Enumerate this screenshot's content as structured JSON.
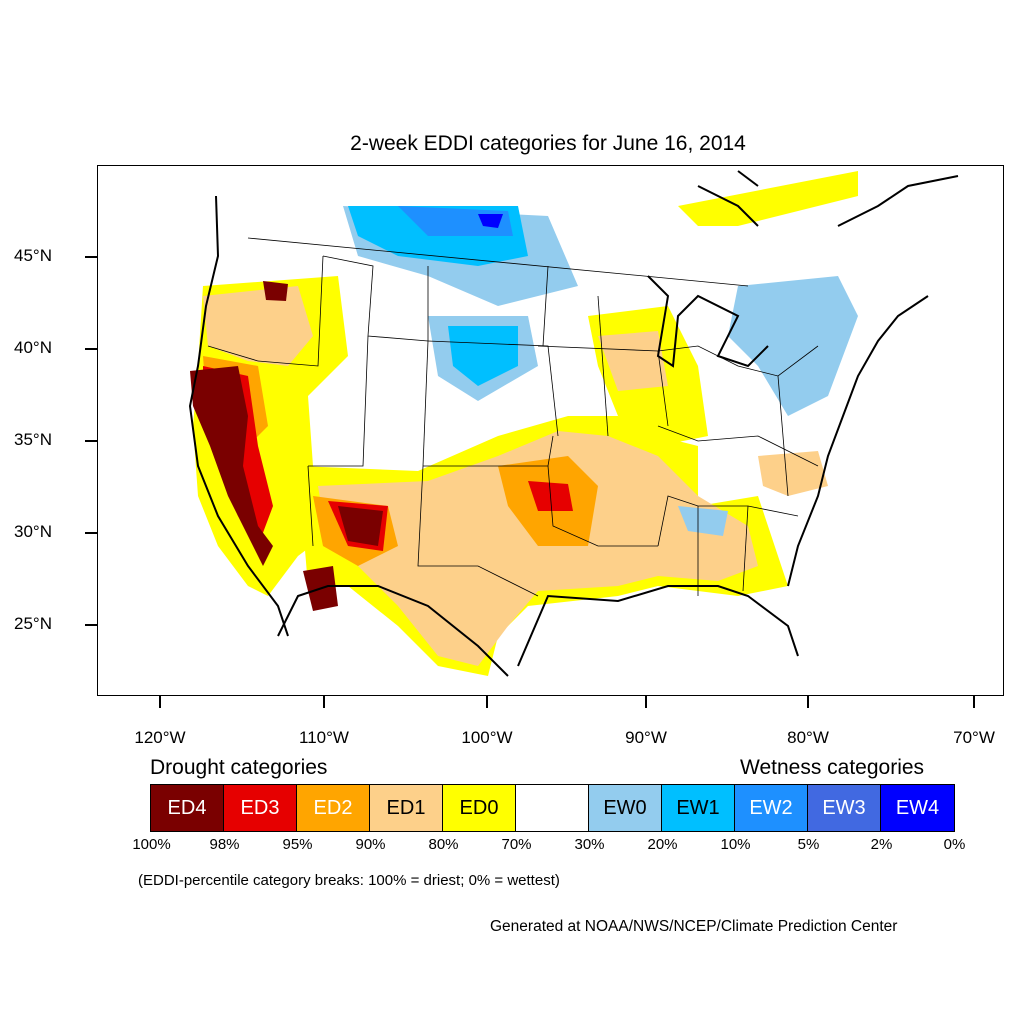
{
  "title": "2-week EDDI categories for June 16, 2014",
  "lat_labels": [
    "45°N",
    "40°N",
    "35°N",
    "30°N",
    "25°N"
  ],
  "lon_labels": [
    "120°W",
    "110°W",
    "100°W",
    "90°W",
    "80°W",
    "70°W"
  ],
  "legend": {
    "drought_title": "Drought categories",
    "wetness_title": "Wetness categories",
    "categories": [
      {
        "label": "ED4",
        "color": "#7a0000",
        "text_color": "#ffffff"
      },
      {
        "label": "ED3",
        "color": "#e60000",
        "text_color": "#ffffff"
      },
      {
        "label": "ED2",
        "color": "#ffa500",
        "text_color": "#ffffff"
      },
      {
        "label": "ED1",
        "color": "#fdd08a",
        "text_color": "#000000"
      },
      {
        "label": "ED0",
        "color": "#ffff00",
        "text_color": "#000000"
      },
      {
        "label": "",
        "color": "#ffffff",
        "text_color": "#000000"
      },
      {
        "label": "EW0",
        "color": "#93ccee",
        "text_color": "#000000"
      },
      {
        "label": "EW1",
        "color": "#00bfff",
        "text_color": "#000000"
      },
      {
        "label": "EW2",
        "color": "#1e90ff",
        "text_color": "#ffffff"
      },
      {
        "label": "EW3",
        "color": "#4169e1",
        "text_color": "#ffffff"
      },
      {
        "label": "EW4",
        "color": "#0000ff",
        "text_color": "#ffffff"
      }
    ],
    "percent_breaks": [
      "100%",
      "98%",
      "95%",
      "90%",
      "80%",
      "70%",
      "30%",
      "20%",
      "10%",
      "5%",
      "2%",
      "0%"
    ]
  },
  "note": "(EDDI-percentile category breaks: 100% = driest; 0% = wettest)",
  "credit": "Generated at NOAA/NWS/NCEP/Climate Prediction Center"
}
